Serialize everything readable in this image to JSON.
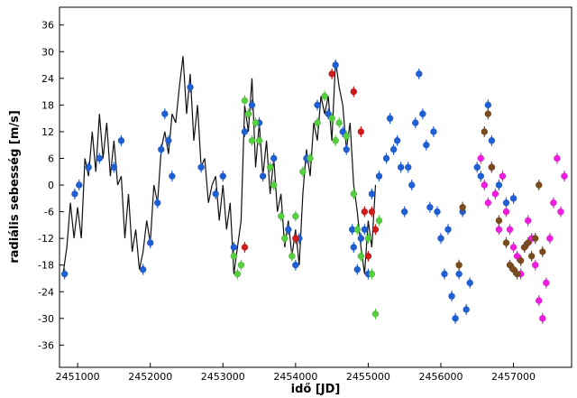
{
  "chart_data": {
    "type": "scatter",
    "title": "",
    "xlabel": "idő [JD]",
    "ylabel": "radiális sebesség [m/s]",
    "xlim": [
      2450750,
      2457800
    ],
    "ylim": [
      -41,
      40
    ],
    "xticks": [
      2451000,
      2452000,
      2453000,
      2454000,
      2455000,
      2456000,
      2457000
    ],
    "xtick_labels": [
      "2451000",
      "2452000",
      "2453000",
      "2454000",
      "2455000",
      "2456000",
      "2457000"
    ],
    "yticks": [
      36,
      30,
      24,
      18,
      12,
      6,
      0,
      -6,
      -12,
      -18,
      -24,
      -30,
      -36
    ],
    "ytick_labels": [
      "36",
      "30",
      "24",
      "18",
      "12",
      "6",
      "0",
      "-6",
      "-12",
      "-18",
      "-24",
      "-30",
      "-36"
    ],
    "grid": false,
    "legend": "none",
    "model_line": {
      "color": "#111111",
      "points": [
        [
          2450800,
          -20
        ],
        [
          2450850,
          -14
        ],
        [
          2450900,
          -4
        ],
        [
          2450950,
          -12
        ],
        [
          2451000,
          -5
        ],
        [
          2451050,
          -12
        ],
        [
          2451100,
          6
        ],
        [
          2451150,
          2
        ],
        [
          2451200,
          12
        ],
        [
          2451250,
          3
        ],
        [
          2451300,
          16
        ],
        [
          2451350,
          6
        ],
        [
          2451400,
          14
        ],
        [
          2451450,
          2
        ],
        [
          2451500,
          10
        ],
        [
          2451550,
          0
        ],
        [
          2451600,
          2
        ],
        [
          2451650,
          -12
        ],
        [
          2451700,
          -2
        ],
        [
          2451750,
          -15
        ],
        [
          2451800,
          -10
        ],
        [
          2451850,
          -19
        ],
        [
          2451900,
          -15
        ],
        [
          2451950,
          -8
        ],
        [
          2452000,
          -13
        ],
        [
          2452050,
          0
        ],
        [
          2452100,
          -4
        ],
        [
          2452150,
          8
        ],
        [
          2452200,
          12
        ],
        [
          2452250,
          7
        ],
        [
          2452300,
          16
        ],
        [
          2452350,
          14
        ],
        [
          2452400,
          22
        ],
        [
          2452450,
          29
        ],
        [
          2452500,
          16
        ],
        [
          2452550,
          25
        ],
        [
          2452600,
          10
        ],
        [
          2452650,
          18
        ],
        [
          2452700,
          4
        ],
        [
          2452750,
          6
        ],
        [
          2452800,
          -4
        ],
        [
          2452850,
          0
        ],
        [
          2452900,
          2
        ],
        [
          2452950,
          -8
        ],
        [
          2453000,
          0
        ],
        [
          2453050,
          -10
        ],
        [
          2453100,
          -4
        ],
        [
          2453150,
          -20
        ],
        [
          2453200,
          -14
        ],
        [
          2453250,
          -8
        ],
        [
          2453300,
          18
        ],
        [
          2453350,
          12
        ],
        [
          2453400,
          24
        ],
        [
          2453450,
          4
        ],
        [
          2453500,
          14
        ],
        [
          2453550,
          2
        ],
        [
          2453600,
          10
        ],
        [
          2453650,
          -2
        ],
        [
          2453700,
          6
        ],
        [
          2453750,
          -6
        ],
        [
          2453800,
          -2
        ],
        [
          2453850,
          -14
        ],
        [
          2453900,
          -8
        ],
        [
          2453950,
          -16
        ],
        [
          2454000,
          -10
        ],
        [
          2454050,
          -18
        ],
        [
          2454100,
          -2
        ],
        [
          2454150,
          8
        ],
        [
          2454200,
          2
        ],
        [
          2454250,
          14
        ],
        [
          2454300,
          10
        ],
        [
          2454350,
          20
        ],
        [
          2454400,
          16
        ],
        [
          2454450,
          20
        ],
        [
          2454500,
          10
        ],
        [
          2454550,
          28
        ],
        [
          2454600,
          22
        ],
        [
          2454650,
          18
        ],
        [
          2454700,
          8
        ],
        [
          2454750,
          14
        ],
        [
          2454800,
          0
        ],
        [
          2454850,
          -6
        ],
        [
          2454900,
          -14
        ],
        [
          2454950,
          -20
        ],
        [
          2455000,
          -8
        ],
        [
          2455050,
          -14
        ],
        [
          2455100,
          0
        ]
      ]
    },
    "series": [
      {
        "color": "#1f5fd6",
        "points": [
          [
            2450820,
            -20
          ],
          [
            2450960,
            -2
          ],
          [
            2451020,
            0
          ],
          [
            2451150,
            4
          ],
          [
            2451300,
            6
          ],
          [
            2451500,
            4
          ],
          [
            2451600,
            10
          ],
          [
            2451900,
            -19
          ],
          [
            2452000,
            -13
          ],
          [
            2452100,
            -4
          ],
          [
            2452150,
            8
          ],
          [
            2452200,
            16
          ],
          [
            2452250,
            10
          ],
          [
            2452300,
            2
          ],
          [
            2452550,
            22
          ],
          [
            2452700,
            4
          ],
          [
            2452900,
            -2
          ],
          [
            2453000,
            2
          ],
          [
            2453150,
            -14
          ],
          [
            2453300,
            12
          ],
          [
            2453400,
            18
          ],
          [
            2453500,
            14
          ],
          [
            2453550,
            2
          ],
          [
            2453700,
            6
          ],
          [
            2453900,
            -10
          ],
          [
            2454000,
            -18
          ],
          [
            2454050,
            -12
          ],
          [
            2454150,
            6
          ],
          [
            2454300,
            18
          ],
          [
            2454450,
            16
          ],
          [
            2454550,
            27
          ],
          [
            2454650,
            12
          ],
          [
            2454700,
            8
          ],
          [
            2454780,
            -10
          ],
          [
            2454800,
            -14
          ],
          [
            2454850,
            -19
          ],
          [
            2454900,
            -12
          ],
          [
            2454950,
            -10
          ],
          [
            2455000,
            -20
          ],
          [
            2455050,
            -2
          ],
          [
            2455150,
            2
          ],
          [
            2455250,
            6
          ],
          [
            2455300,
            15
          ],
          [
            2455350,
            8
          ],
          [
            2455400,
            10
          ],
          [
            2455450,
            4
          ],
          [
            2455500,
            -6
          ],
          [
            2455550,
            4
          ],
          [
            2455600,
            0
          ],
          [
            2455650,
            14
          ],
          [
            2455700,
            25
          ],
          [
            2455750,
            16
          ],
          [
            2455800,
            9
          ],
          [
            2455850,
            -5
          ],
          [
            2455900,
            12
          ],
          [
            2455950,
            -6
          ],
          [
            2456000,
            -12
          ],
          [
            2456050,
            -20
          ],
          [
            2456100,
            -10
          ],
          [
            2456150,
            -25
          ],
          [
            2456200,
            -30
          ],
          [
            2456250,
            -20
          ],
          [
            2456300,
            -6
          ],
          [
            2456350,
            -28
          ],
          [
            2456400,
            -22
          ],
          [
            2456500,
            4
          ],
          [
            2456550,
            2
          ],
          [
            2456650,
            18
          ],
          [
            2456700,
            10
          ],
          [
            2456800,
            0
          ],
          [
            2456900,
            -4
          ],
          [
            2457000,
            -3
          ]
        ]
      },
      {
        "color": "#55cf3f",
        "points": [
          [
            2453150,
            -16
          ],
          [
            2453200,
            -20
          ],
          [
            2453250,
            -18
          ],
          [
            2453300,
            19
          ],
          [
            2453350,
            16
          ],
          [
            2453400,
            10
          ],
          [
            2453450,
            14
          ],
          [
            2453500,
            10
          ],
          [
            2453650,
            4
          ],
          [
            2453700,
            0
          ],
          [
            2453800,
            -7
          ],
          [
            2453850,
            -12
          ],
          [
            2453950,
            -16
          ],
          [
            2454000,
            -7
          ],
          [
            2454100,
            3
          ],
          [
            2454200,
            6
          ],
          [
            2454300,
            14
          ],
          [
            2454400,
            20
          ],
          [
            2454500,
            15
          ],
          [
            2454550,
            10
          ],
          [
            2454600,
            14
          ],
          [
            2454700,
            11
          ],
          [
            2454800,
            -2
          ],
          [
            2454850,
            -10
          ],
          [
            2454900,
            -16
          ],
          [
            2455000,
            -12
          ],
          [
            2455050,
            -20
          ],
          [
            2455100,
            -29
          ],
          [
            2455150,
            -8
          ]
        ]
      },
      {
        "color": "#d11a1a",
        "points": [
          [
            2453300,
            -14
          ],
          [
            2454000,
            -12
          ],
          [
            2454500,
            25
          ],
          [
            2454800,
            21
          ],
          [
            2454900,
            12
          ],
          [
            2454950,
            -6
          ],
          [
            2455000,
            -16
          ],
          [
            2455050,
            -6
          ],
          [
            2455100,
            -10
          ]
        ]
      },
      {
        "color": "#f21be0",
        "points": [
          [
            2456550,
            6
          ],
          [
            2456600,
            0
          ],
          [
            2456650,
            -4
          ],
          [
            2456700,
            4
          ],
          [
            2456750,
            -2
          ],
          [
            2456800,
            -10
          ],
          [
            2456850,
            2
          ],
          [
            2456900,
            -6
          ],
          [
            2456950,
            -10
          ],
          [
            2457000,
            -14
          ],
          [
            2457050,
            -16
          ],
          [
            2457100,
            -20
          ],
          [
            2457150,
            -14
          ],
          [
            2457200,
            -8
          ],
          [
            2457250,
            -12
          ],
          [
            2457300,
            -18
          ],
          [
            2457350,
            -26
          ],
          [
            2457400,
            -30
          ],
          [
            2457450,
            -22
          ],
          [
            2457500,
            -12
          ],
          [
            2457550,
            -4
          ],
          [
            2457600,
            6
          ],
          [
            2457650,
            -6
          ],
          [
            2457700,
            2
          ]
        ]
      },
      {
        "color": "#7a4b1d",
        "points": [
          [
            2456250,
            -18
          ],
          [
            2456300,
            -5
          ],
          [
            2456600,
            12
          ],
          [
            2456650,
            16
          ],
          [
            2456700,
            4
          ],
          [
            2456800,
            -8
          ],
          [
            2456900,
            -13
          ],
          [
            2456950,
            -18
          ],
          [
            2457000,
            -19
          ],
          [
            2457050,
            -20
          ],
          [
            2457100,
            -17
          ],
          [
            2457150,
            -14
          ],
          [
            2457200,
            -13
          ],
          [
            2457250,
            -16
          ],
          [
            2457300,
            -12
          ],
          [
            2457350,
            0
          ],
          [
            2457400,
            -15
          ]
        ]
      }
    ]
  }
}
